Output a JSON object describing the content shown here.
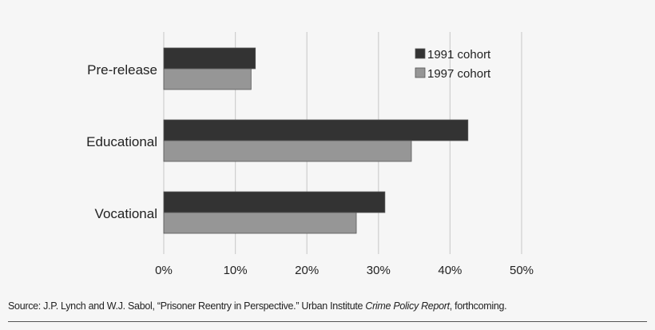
{
  "chart_data": {
    "type": "bar",
    "orientation": "horizontal",
    "categories": [
      "Pre-release",
      "Educational",
      "Vocational"
    ],
    "series": [
      {
        "name": "1991 cohort",
        "color": "#333333",
        "values": [
          12.8,
          42.5,
          30.9
        ]
      },
      {
        "name": "1997 cohort",
        "color": "#969696",
        "values": [
          12.2,
          34.6,
          26.9
        ]
      }
    ],
    "xlim": [
      0,
      50
    ],
    "xticks": [
      "0%",
      "10%",
      "20%",
      "30%",
      "40%",
      "50%"
    ],
    "grid": true,
    "legend": "top-right",
    "title": "",
    "xlabel": "",
    "ylabel": ""
  },
  "source": {
    "prefix": "Source: J.P. Lynch and W.J. Sabol, “Prisoner Reentry in Perspective.”  Urban Institute ",
    "italic": "Crime Policy Report",
    "suffix": ", forthcoming."
  }
}
